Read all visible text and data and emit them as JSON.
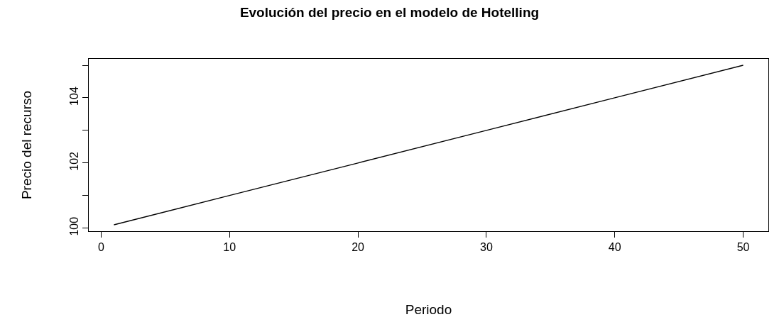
{
  "chart_data": {
    "type": "line",
    "title": "Evolución del precio en el modelo de Hotelling",
    "xlabel": "Periodo",
    "ylabel": "Precio del recurso",
    "x": [
      1,
      10,
      20,
      30,
      40,
      50
    ],
    "series": [
      {
        "color": "#000000",
        "values": [
          100.1,
          101,
          102,
          103,
          104,
          105
        ]
      }
    ],
    "xlim": [
      -0.96,
      51.96
    ],
    "xticks": [
      0,
      10,
      20,
      30,
      40,
      50
    ],
    "ylim": [
      99.904,
      105.196
    ],
    "yticks": [
      100,
      {
        "value": 101,
        "label": null
      },
      102,
      {
        "value": 103,
        "label": null
      },
      104,
      {
        "value": 105,
        "label": null
      }
    ],
    "grid": false,
    "marker": "none",
    "line_style": "solid"
  }
}
